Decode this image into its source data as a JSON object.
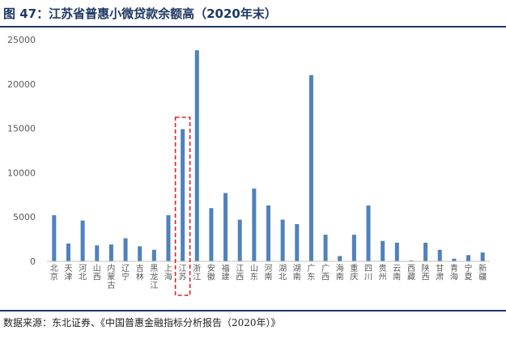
{
  "figure": {
    "title": "图 47：江苏省普惠小微贷款余额高（2020年末）",
    "source": "数据来源：东北证券、《中国普惠金融指标分析报告（2020年）》"
  },
  "chart_data": {
    "type": "bar",
    "categories": [
      "北京",
      "天津",
      "河北",
      "山西",
      "内蒙古",
      "辽宁",
      "吉林",
      "黑龙江",
      "上海",
      "江苏",
      "浙江",
      "安徽",
      "福建",
      "江西",
      "山东",
      "河南",
      "湖北",
      "湖南",
      "广东",
      "广西",
      "海南",
      "重庆",
      "四川",
      "贵州",
      "云南",
      "西藏",
      "陕西",
      "甘肃",
      "青海",
      "宁夏",
      "新疆"
    ],
    "values": [
      5200,
      2000,
      4600,
      1800,
      1900,
      2600,
      1700,
      1300,
      5200,
      14900,
      23800,
      6000,
      7700,
      4700,
      8200,
      6300,
      4700,
      4200,
      21000,
      3000,
      600,
      3000,
      6300,
      2300,
      2100,
      100,
      2100,
      1300,
      300,
      700,
      1000
    ],
    "ylim": [
      0,
      25000
    ],
    "yticks": [
      "0",
      "5000",
      "10000",
      "15000",
      "20000",
      "25000"
    ],
    "ytick_values": [
      0,
      5000,
      10000,
      15000,
      20000,
      25000
    ],
    "highlight_category": "江苏",
    "grid": false,
    "legend": "none",
    "xlabel": "",
    "ylabel": "",
    "bar_color": "#4f81bd",
    "highlight_color": "#e02020"
  }
}
